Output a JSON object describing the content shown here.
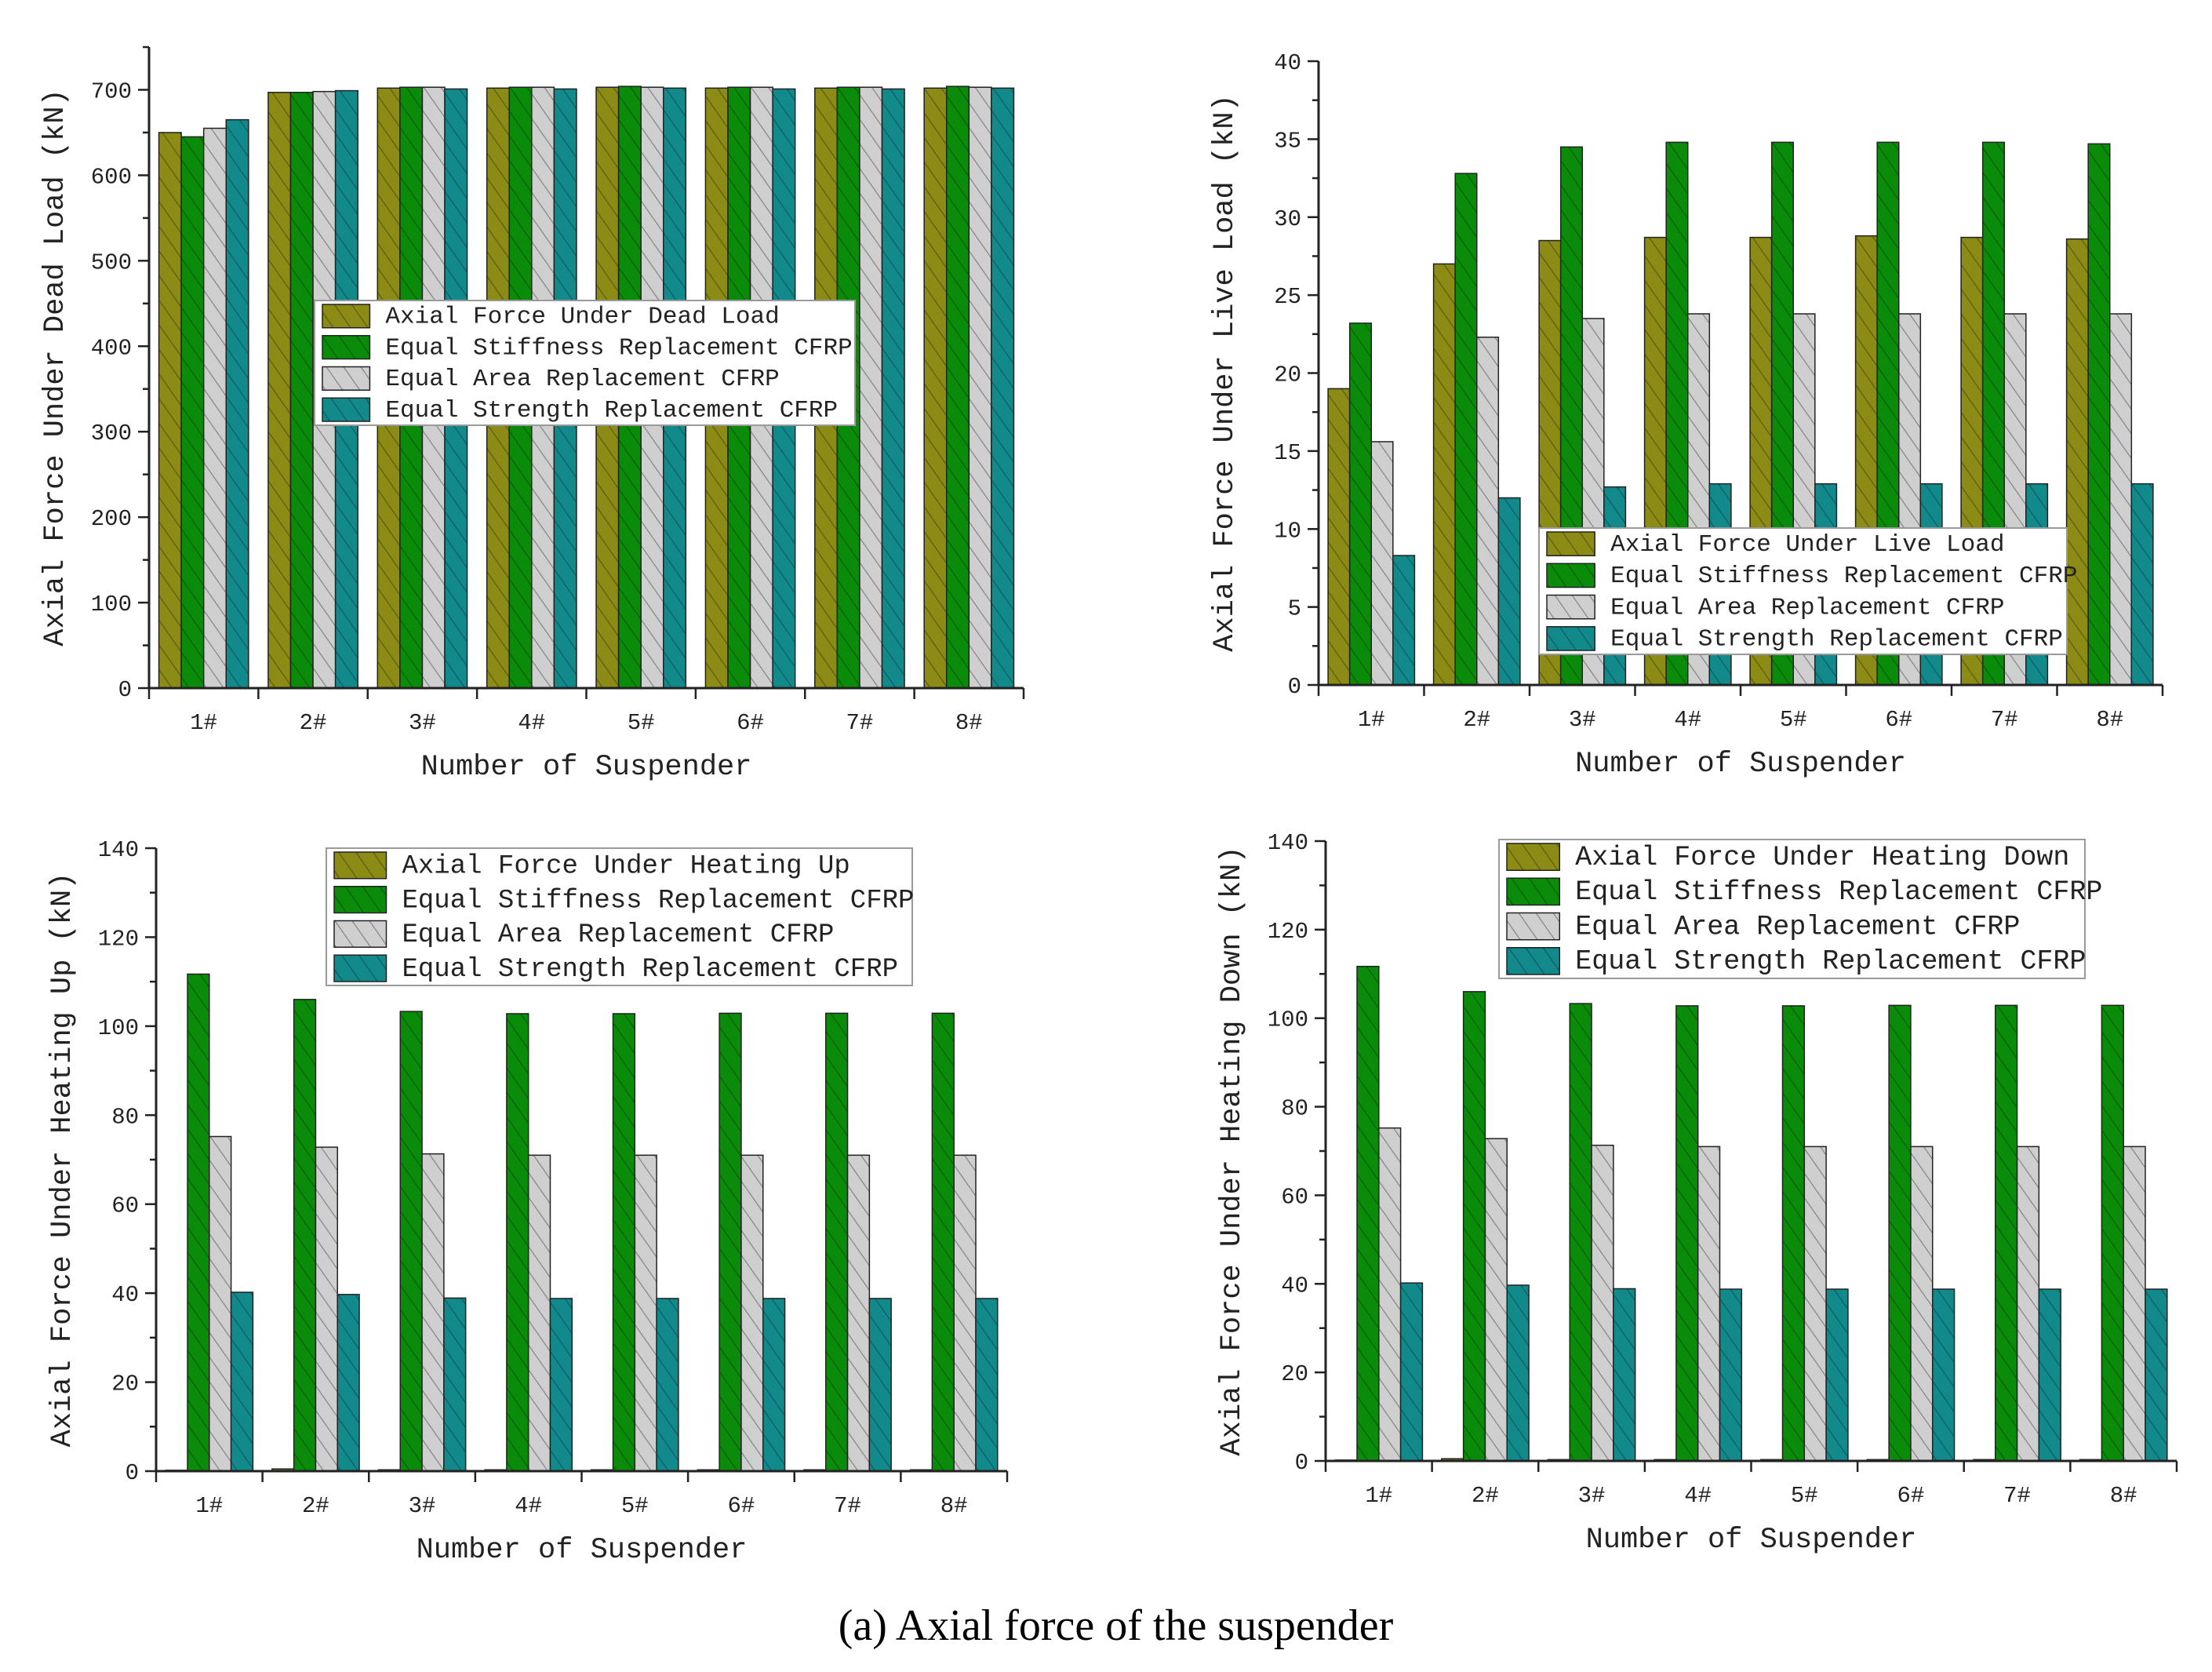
{
  "caption": "(a) Axial force of the suspender",
  "colors": {
    "olive": "#8b8b16",
    "green": "#0a8c0a",
    "gray": "#cfcfcf",
    "teal": "#128a8c"
  },
  "chart_data": [
    {
      "type": "bar",
      "xlabel": "Number of Suspender",
      "ylabel": "Axial Force Under Dead Load (kN)",
      "categories": [
        "1#",
        "2#",
        "3#",
        "4#",
        "5#",
        "6#",
        "7#",
        "8#"
      ],
      "ylim": [
        0,
        750
      ],
      "yticks": [
        0,
        100,
        200,
        300,
        400,
        500,
        600,
        700
      ],
      "legend_placement": "center",
      "series": [
        {
          "name": "Axial Force Under Dead Load",
          "color": "#8b8b16",
          "values": [
            650,
            697,
            702,
            702,
            703,
            702,
            702,
            702
          ]
        },
        {
          "name": "Equal Stiffness Replacement CFRP",
          "color": "#0a8c0a",
          "values": [
            645,
            697,
            703,
            703,
            704,
            703,
            703,
            704
          ]
        },
        {
          "name": "Equal Area Replacement CFRP",
          "color": "#cfcfcf",
          "values": [
            655,
            698,
            703,
            703,
            703,
            703,
            703,
            703
          ]
        },
        {
          "name": "Equal Strength Replacement CFRP",
          "color": "#128a8c",
          "values": [
            665,
            699,
            701,
            701,
            702,
            701,
            701,
            702
          ]
        }
      ]
    },
    {
      "type": "bar",
      "xlabel": "Number of Suspender",
      "ylabel": "Axial Force Under Live Load (kN)",
      "categories": [
        "1#",
        "2#",
        "3#",
        "4#",
        "5#",
        "6#",
        "7#",
        "8#"
      ],
      "ylim": [
        0,
        40
      ],
      "yticks": [
        0,
        5,
        10,
        15,
        20,
        25,
        30,
        35,
        40
      ],
      "legend_placement": "bottom-right",
      "series": [
        {
          "name": "Axial Force Under Live Load",
          "color": "#8b8b16",
          "values": [
            19.0,
            27.0,
            28.5,
            28.7,
            28.7,
            28.8,
            28.7,
            28.6
          ]
        },
        {
          "name": "Equal Stiffness Replacement CFRP",
          "color": "#0a8c0a",
          "values": [
            23.2,
            32.8,
            34.5,
            34.8,
            34.8,
            34.8,
            34.8,
            34.7
          ]
        },
        {
          "name": "Equal Area Replacement CFRP",
          "color": "#cfcfcf",
          "values": [
            15.6,
            22.3,
            23.5,
            23.8,
            23.8,
            23.8,
            23.8,
            23.8
          ]
        },
        {
          "name": "Equal Strength Replacement CFRP",
          "color": "#128a8c",
          "values": [
            8.3,
            12.0,
            12.7,
            12.9,
            12.9,
            12.9,
            12.9,
            12.9
          ]
        }
      ]
    },
    {
      "type": "bar",
      "xlabel": "Number of Suspender",
      "ylabel": "Axial Force Under Heating Up (kN)",
      "categories": [
        "1#",
        "2#",
        "3#",
        "4#",
        "5#",
        "6#",
        "7#",
        "8#"
      ],
      "ylim": [
        0,
        140
      ],
      "yticks": [
        0,
        20,
        40,
        60,
        80,
        100,
        120,
        140
      ],
      "legend_placement": "top",
      "series": [
        {
          "name": "Axial Force Under Heating Up",
          "color": "#8b8b16",
          "values": [
            0.2,
            0.5,
            0.3,
            0.3,
            0.3,
            0.3,
            0.3,
            0.3
          ]
        },
        {
          "name": "Equal Stiffness Replacement CFRP",
          "color": "#0a8c0a",
          "values": [
            111.7,
            106.0,
            103.3,
            102.8,
            102.8,
            102.9,
            102.9,
            102.9
          ]
        },
        {
          "name": "Equal Area Replacement CFRP",
          "color": "#cfcfcf",
          "values": [
            75.2,
            72.8,
            71.3,
            71.0,
            71.0,
            71.0,
            71.0,
            71.0
          ]
        },
        {
          "name": "Equal Strength Replacement CFRP",
          "color": "#128a8c",
          "values": [
            40.2,
            39.7,
            38.9,
            38.8,
            38.8,
            38.8,
            38.8,
            38.8
          ]
        }
      ]
    },
    {
      "type": "bar",
      "xlabel": "Number of Suspender",
      "ylabel": "Axial Force Under Heating Down (kN)",
      "categories": [
        "1#",
        "2#",
        "3#",
        "4#",
        "5#",
        "6#",
        "7#",
        "8#"
      ],
      "ylim": [
        0,
        140
      ],
      "yticks": [
        0,
        20,
        40,
        60,
        80,
        100,
        120,
        140
      ],
      "legend_placement": "top",
      "series": [
        {
          "name": "Axial Force Under Heating Down",
          "color": "#8b8b16",
          "values": [
            0.2,
            0.5,
            0.3,
            0.3,
            0.3,
            0.3,
            0.3,
            0.3
          ]
        },
        {
          "name": "Equal Stiffness Replacement CFRP",
          "color": "#0a8c0a",
          "values": [
            111.7,
            106.0,
            103.3,
            102.8,
            102.8,
            102.9,
            102.9,
            102.9
          ]
        },
        {
          "name": "Equal Area Replacement CFRP",
          "color": "#cfcfcf",
          "values": [
            75.2,
            72.8,
            71.3,
            71.0,
            71.0,
            71.0,
            71.0,
            71.0
          ]
        },
        {
          "name": "Equal Strength Replacement CFRP",
          "color": "#128a8c",
          "values": [
            40.2,
            39.7,
            38.9,
            38.8,
            38.8,
            38.8,
            38.8,
            38.8
          ]
        }
      ]
    }
  ]
}
